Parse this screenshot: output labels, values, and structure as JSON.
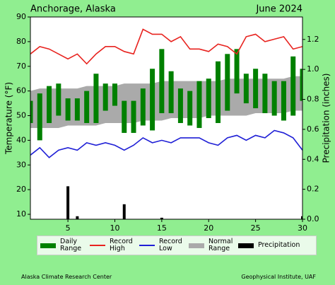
{
  "chart_data": {
    "type": "climate",
    "title": "Anchorage, Alaska",
    "subtitle": "June 2024",
    "y_label": "Temperature (°F)",
    "y2_label": "Precipitation (inches)",
    "x": [
      1,
      2,
      3,
      4,
      5,
      6,
      7,
      8,
      9,
      10,
      11,
      12,
      13,
      14,
      15,
      16,
      17,
      18,
      19,
      20,
      21,
      22,
      23,
      24,
      25,
      26,
      27,
      28,
      29,
      30
    ],
    "xlim": [
      1,
      30
    ],
    "xticks": [
      5,
      10,
      15,
      20,
      25,
      30
    ],
    "ylim": [
      8,
      90
    ],
    "yticks": [
      10,
      20,
      30,
      40,
      50,
      60,
      70,
      80,
      90
    ],
    "y2lim": [
      0,
      1.35
    ],
    "y2ticks": [
      {
        "value": 0,
        "label": "0.0"
      },
      0.2,
      0.4,
      0.6,
      0.8,
      {
        "value": 1,
        "label": "1.0"
      },
      1.2
    ],
    "series": [
      {
        "name": "Daily Range",
        "type": "range_bar",
        "color": "#008000",
        "low": [
          47,
          40,
          47,
          50,
          48,
          48,
          47,
          47,
          52,
          54,
          43,
          43,
          46,
          44,
          51,
          51,
          47,
          46,
          45,
          49,
          47,
          52,
          59,
          55,
          53,
          51,
          50,
          48,
          50,
          56
        ],
        "high": [
          56,
          59,
          62,
          63,
          57,
          57,
          60,
          67,
          63,
          63,
          56,
          56,
          61,
          69,
          77,
          68,
          61,
          60,
          64,
          65,
          72,
          75,
          77,
          67,
          69,
          67,
          64,
          64,
          74,
          69
        ]
      },
      {
        "name": "Record High",
        "type": "line",
        "color": "#e8231f",
        "values": [
          75,
          78,
          77,
          75,
          73,
          75,
          71,
          75,
          78,
          78,
          76,
          75,
          85,
          83,
          83,
          80,
          82,
          77,
          77,
          76,
          79,
          78,
          75,
          82,
          83,
          80,
          81,
          82,
          77,
          78
        ]
      },
      {
        "name": "Record Low",
        "type": "line",
        "color": "#1f1fd6",
        "values": [
          34,
          37,
          33,
          36,
          37,
          36,
          39,
          38,
          39,
          38,
          36,
          38,
          41,
          39,
          40,
          39,
          41,
          41,
          41,
          39,
          38,
          41,
          42,
          40,
          42,
          41,
          44,
          43,
          41,
          36
        ]
      },
      {
        "name": "Normal Range",
        "type": "band",
        "color": "#aaaaaa",
        "low": [
          45,
          45,
          45,
          45,
          46,
          46,
          46,
          46,
          47,
          47,
          47,
          47,
          48,
          48,
          48,
          49,
          49,
          49,
          49,
          50,
          50,
          50,
          50,
          50,
          51,
          51,
          51,
          51,
          52,
          52
        ],
        "high": [
          60,
          61,
          61,
          61,
          61,
          61,
          62,
          62,
          62,
          62,
          63,
          63,
          63,
          63,
          64,
          64,
          64,
          64,
          64,
          64,
          64,
          65,
          65,
          65,
          65,
          65,
          65,
          65,
          66,
          66
        ]
      },
      {
        "name": "Precipitation",
        "type": "bar",
        "color": "#000000",
        "axis": "y2",
        "values": [
          0,
          0,
          0,
          0,
          0.22,
          0.02,
          0,
          0,
          0,
          0,
          0.1,
          0,
          0,
          0,
          0.01,
          0,
          0,
          0,
          0,
          0,
          0,
          0,
          0,
          0,
          0,
          0,
          0,
          0,
          0,
          0.02
        ]
      }
    ],
    "credit_left": "Alaska Climate Research Center",
    "credit_right": "Geophysical Institute, UAF"
  }
}
